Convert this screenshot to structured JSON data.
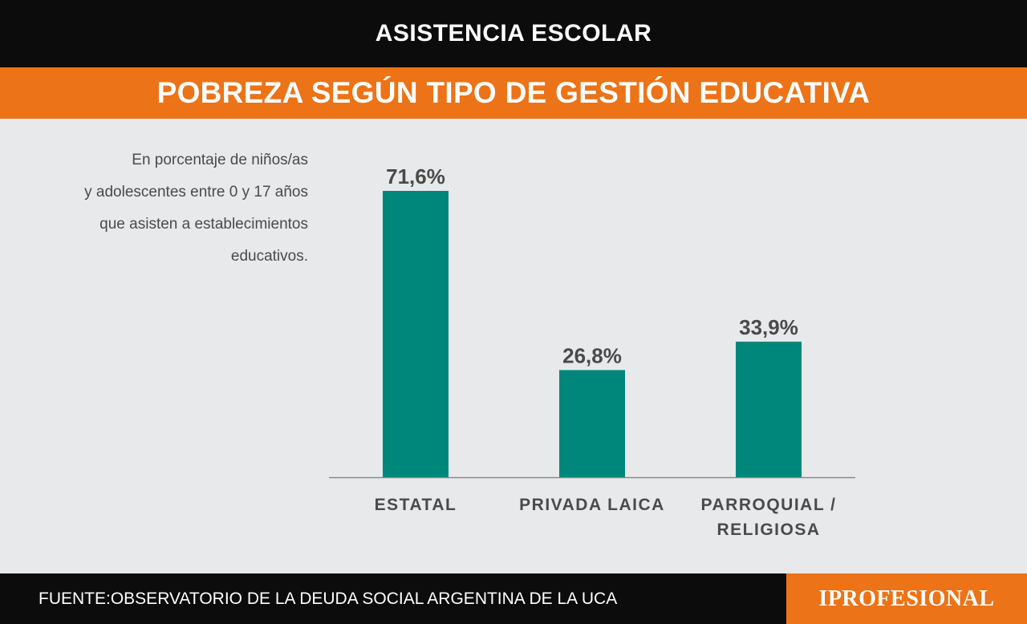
{
  "header": {
    "title": "ASISTENCIA ESCOLAR",
    "subtitle": "POBREZA SEGÚN TIPO DE GESTIÓN EDUCATIVA"
  },
  "note_lines": [
    "En porcentaje de niños/as",
    "y adolescentes entre 0 y 17 años",
    "que asisten a establecimientos",
    "educativos."
  ],
  "footer": {
    "source": "FUENTE:OBSERVATORIO DE LA DEUDA SOCIAL ARGENTINA DE LA UCA",
    "logo": "IPROFESIONAL"
  },
  "colors": {
    "bar": "#00877c",
    "accent": "#ec7317",
    "band": "#0c0c0c",
    "label": "#4a4a4a"
  },
  "chart_data": {
    "type": "bar",
    "categories": [
      "ESTATAL",
      "PRIVADA LAICA",
      "PARROQUIAL / RELIGIOSA"
    ],
    "category_lines": [
      [
        "ESTATAL"
      ],
      [
        "PRIVADA LAICA"
      ],
      [
        "PARROQUIAL /",
        "RELIGIOSA"
      ]
    ],
    "values": [
      71.6,
      26.8,
      33.9
    ],
    "value_labels": [
      "71,6%",
      "26,8%",
      "33,9%"
    ],
    "ylim": [
      0,
      71.6
    ],
    "grid": false,
    "legend": "none"
  }
}
